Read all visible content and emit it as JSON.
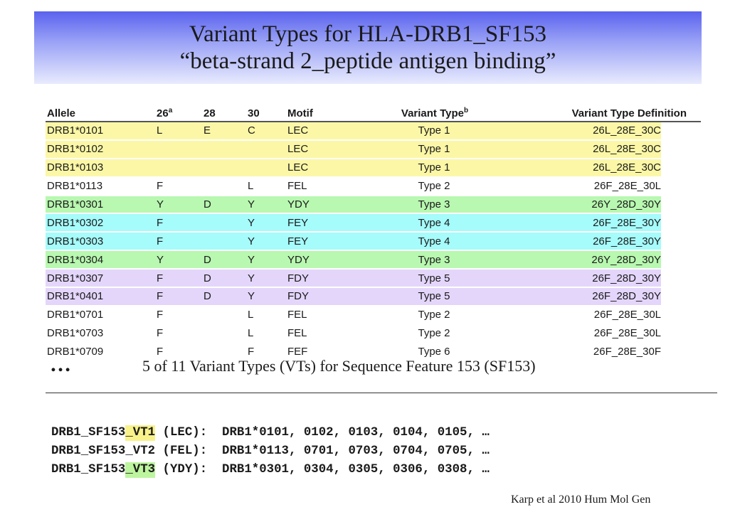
{
  "title": {
    "line1": "Variant Types for HLA-DRB1_SF153",
    "line2": "“beta-strand 2_peptide antigen binding”"
  },
  "table": {
    "headers": {
      "allele": "Allele",
      "p26": "26",
      "p26_sup": "a",
      "p28": "28",
      "p30": "30",
      "motif": "Motif",
      "variant_type": "Variant Type",
      "variant_type_sup": "b",
      "definition": "Variant Type Definition"
    },
    "colors": {
      "yellow": "#fbf7a6",
      "green": "#b8f8b0",
      "cyan": "#a6fbfb",
      "purple": "#e4d6fb"
    },
    "rows": [
      {
        "allele": "DRB1*0101",
        "p26": "L",
        "p28": "E",
        "p30": "C",
        "motif": "LEC",
        "type": "Type 1",
        "def": "26L_28E_30C",
        "color": "yellow"
      },
      {
        "allele": "DRB1*0102",
        "p26": "",
        "p28": "",
        "p30": "",
        "motif": "LEC",
        "type": "Type 1",
        "def": "26L_28E_30C",
        "color": "yellow"
      },
      {
        "allele": "DRB1*0103",
        "p26": "",
        "p28": "",
        "p30": "",
        "motif": "LEC",
        "type": "Type 1",
        "def": "26L_28E_30C",
        "color": "yellow"
      },
      {
        "allele": "DRB1*0113",
        "p26": "F",
        "p28": "",
        "p30": "L",
        "motif": "FEL",
        "type": "Type 2",
        "def": "26F_28E_30L",
        "color": "none"
      },
      {
        "allele": "DRB1*0301",
        "p26": "Y",
        "p28": "D",
        "p30": "Y",
        "motif": "YDY",
        "type": "Type 3",
        "def": "26Y_28D_30Y",
        "color": "green"
      },
      {
        "allele": "DRB1*0302",
        "p26": "F",
        "p28": "",
        "p30": "Y",
        "motif": "FEY",
        "type": "Type 4",
        "def": "26F_28E_30Y",
        "color": "cyan"
      },
      {
        "allele": "DRB1*0303",
        "p26": "F",
        "p28": "",
        "p30": "Y",
        "motif": "FEY",
        "type": "Type 4",
        "def": "26F_28E_30Y",
        "color": "cyan"
      },
      {
        "allele": "DRB1*0304",
        "p26": "Y",
        "p28": "D",
        "p30": "Y",
        "motif": "YDY",
        "type": "Type 3",
        "def": "26Y_28D_30Y",
        "color": "green"
      },
      {
        "allele": "DRB1*0307",
        "p26": "F",
        "p28": "D",
        "p30": "Y",
        "motif": "FDY",
        "type": "Type 5",
        "def": "26F_28D_30Y",
        "color": "purple"
      },
      {
        "allele": "DRB1*0401",
        "p26": "F",
        "p28": "D",
        "p30": "Y",
        "motif": "FDY",
        "type": "Type 5",
        "def": "26F_28D_30Y",
        "color": "purple"
      },
      {
        "allele": "DRB1*0701",
        "p26": "F",
        "p28": "",
        "p30": "L",
        "motif": "FEL",
        "type": "Type 2",
        "def": "26F_28E_30L",
        "color": "none"
      },
      {
        "allele": "DRB1*0703",
        "p26": "F",
        "p28": "",
        "p30": "L",
        "motif": "FEL",
        "type": "Type 2",
        "def": "26F_28E_30L",
        "color": "none"
      },
      {
        "allele": "DRB1*0709",
        "p26": "F",
        "p28": "",
        "p30": "F",
        "motif": "FEF",
        "type": "Type 6",
        "def": "26F_28E_30F",
        "color": "none"
      }
    ]
  },
  "ellipsis": "…",
  "caption": "5 of 11 Variant Types (VTs) for Sequence Feature 153 (SF153)",
  "definitions": [
    {
      "prefix": "DRB1_SF153",
      "vt": "_VT1",
      "highlight": "yellow",
      "rest": " (LEC):  DRB1*0101, 0102, 0103, 0104, 0105, …"
    },
    {
      "prefix": "DRB1_SF153",
      "vt": "_VT2",
      "highlight": "none",
      "rest": " (FEL):  DRB1*0113, 0701, 0703, 0704, 0705, …"
    },
    {
      "prefix": "DRB1_SF153",
      "vt": "_VT3",
      "highlight": "green",
      "rest": " (YDY):  DRB1*0301, 0304, 0305, 0306, 0308, …"
    }
  ],
  "citation": "Karp et al 2010 Hum Mol Gen"
}
